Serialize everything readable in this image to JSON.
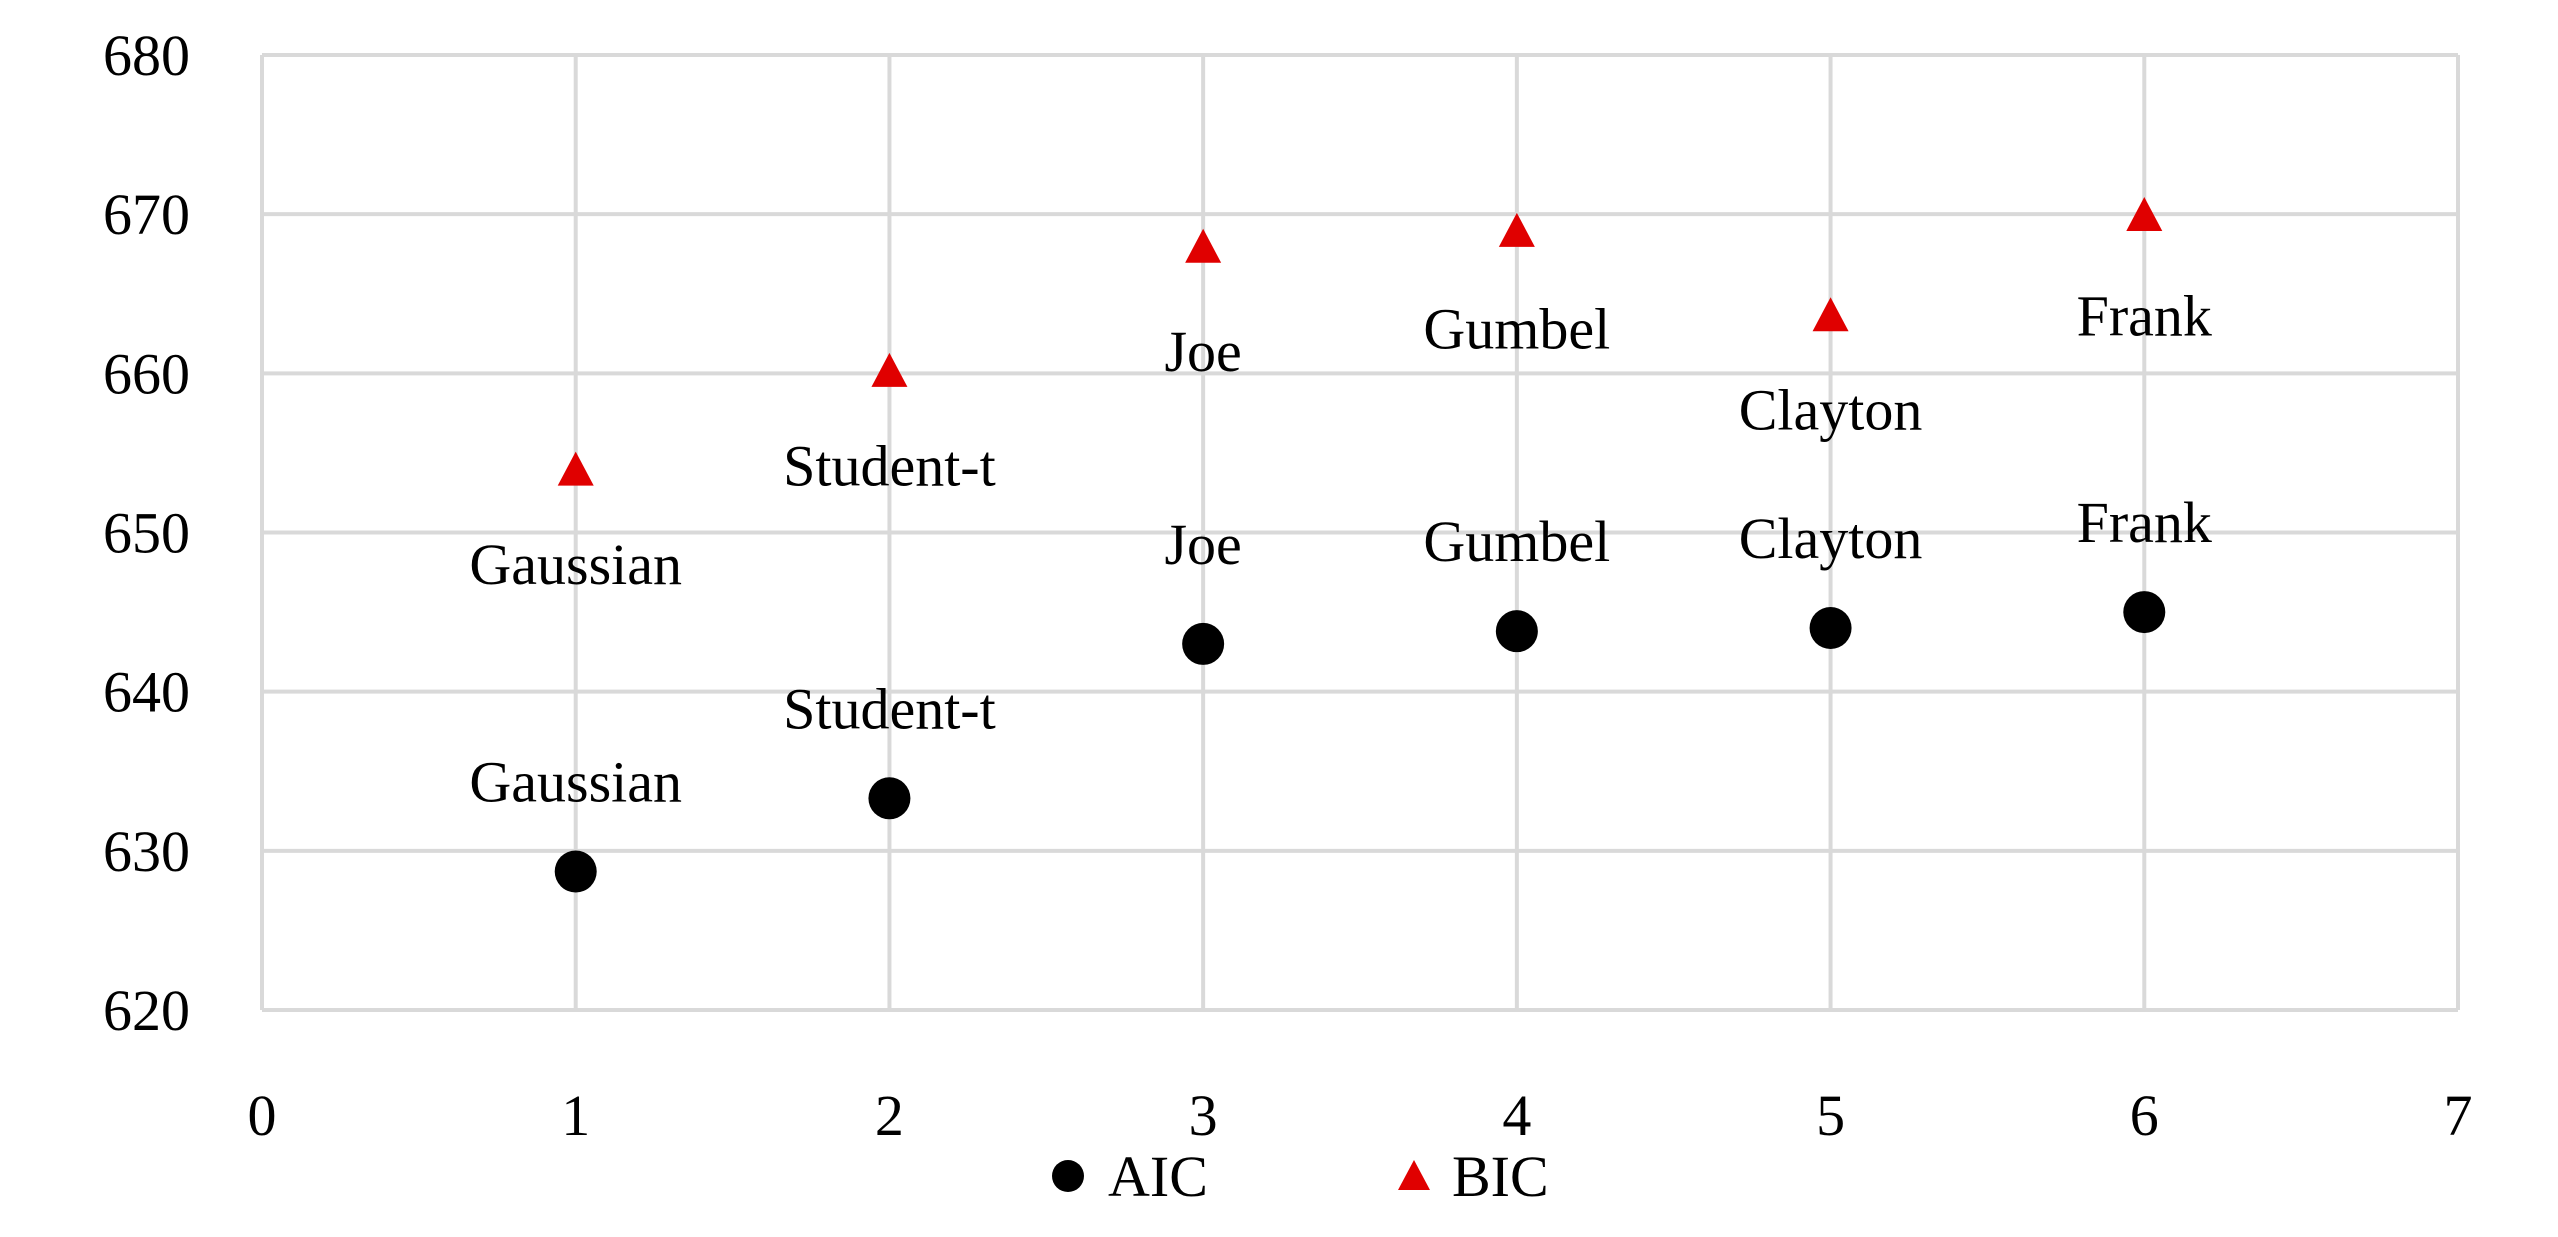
{
  "chart_data": {
    "type": "scatter",
    "xlim": [
      0,
      7
    ],
    "ylim": [
      620,
      680
    ],
    "x_ticks": [
      "0",
      "1",
      "2",
      "3",
      "4",
      "5",
      "6",
      "7"
    ],
    "y_ticks": [
      "620",
      "630",
      "640",
      "650",
      "660",
      "670",
      "680"
    ],
    "grid": true,
    "legend_position": "bottom",
    "series": [
      {
        "name": "AIC",
        "marker": "circle",
        "color": "#000000",
        "points": [
          {
            "x": 1,
            "y": 628.7,
            "label": "Gaussian"
          },
          {
            "x": 2,
            "y": 633.3,
            "label": "Student-t"
          },
          {
            "x": 3,
            "y": 643.0,
            "label": "Joe"
          },
          {
            "x": 4,
            "y": 643.8,
            "label": "Gumbel"
          },
          {
            "x": 5,
            "y": 644.0,
            "label": "Clayton"
          },
          {
            "x": 6,
            "y": 645.0,
            "label": "Frank"
          }
        ]
      },
      {
        "name": "BIC",
        "marker": "triangle",
        "color": "#e00000",
        "points": [
          {
            "x": 1,
            "y": 653.8,
            "label": "Gaussian"
          },
          {
            "x": 2,
            "y": 660.0,
            "label": "Student-t"
          },
          {
            "x": 3,
            "y": 667.8,
            "label": "Joe"
          },
          {
            "x": 4,
            "y": 668.8,
            "label": "Gumbel"
          },
          {
            "x": 5,
            "y": 663.5,
            "label": "Clayton"
          },
          {
            "x": 6,
            "y": 669.8,
            "label": "Frank"
          }
        ]
      }
    ]
  }
}
